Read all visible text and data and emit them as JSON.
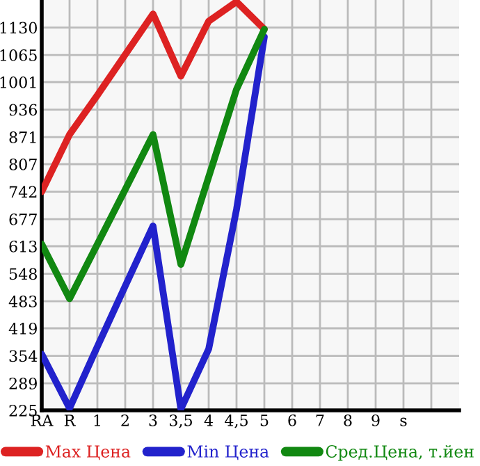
{
  "chart_data": {
    "type": "line",
    "categories": [
      "RA",
      "R",
      "1",
      "2",
      "3",
      "3,5",
      "4",
      "4,5",
      "5",
      "6",
      "7",
      "8",
      "9",
      "s",
      null,
      null
    ],
    "series": [
      {
        "name": "Max Цена",
        "color": "#dd2222",
        "values": [
          742,
          877,
          970,
          1066,
          1162,
          1015,
          1145,
          1191,
          1126,
          null,
          null,
          null,
          null,
          null,
          null,
          null
        ]
      },
      {
        "name": "Min Цена",
        "color": "#2222cc",
        "values": [
          358,
          230,
          376,
          519,
          661,
          228,
          370,
          700,
          1108,
          null,
          null,
          null,
          null,
          null,
          null,
          null
        ]
      },
      {
        "name": "Сред.Цена, т.йен",
        "color": "#118811",
        "values": [
          618,
          489,
          618,
          747,
          877,
          570,
          777,
          984,
          1126,
          null,
          null,
          null,
          null,
          null,
          null,
          null
        ]
      }
    ],
    "ylim": [
      225,
      1195
    ],
    "yticks": [
      225,
      289,
      354,
      419,
      483,
      548,
      613,
      677,
      742,
      807,
      871,
      936,
      1001,
      1065,
      1130
    ],
    "grid": true,
    "legend": "bottom",
    "marker": "none",
    "line_style": "solid"
  }
}
